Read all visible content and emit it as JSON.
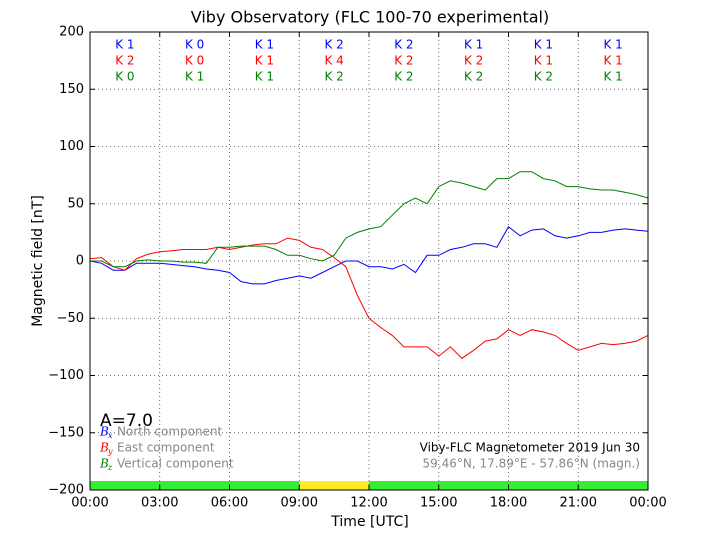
{
  "chart_data": {
    "type": "line",
    "title": "Viby Observatory (FLC 100-70 experimental)",
    "xlabel": "Time [UTC]",
    "ylabel": "Magnetic field [nT]",
    "x": [
      0,
      0.5,
      1,
      1.5,
      2,
      2.5,
      3,
      3.5,
      4,
      4.5,
      5,
      5.5,
      6,
      6.5,
      7,
      7.5,
      8,
      8.5,
      9,
      9.5,
      10,
      10.5,
      11,
      11.5,
      12,
      12.5,
      13,
      13.5,
      14,
      14.5,
      15,
      15.5,
      16,
      16.5,
      17,
      17.5,
      18,
      18.5,
      19,
      19.5,
      20,
      20.5,
      21,
      21.5,
      22,
      22.5,
      23,
      23.5,
      24
    ],
    "xlim": [
      0,
      24
    ],
    "xticks": [
      {
        "value": 0,
        "label": "00:00"
      },
      {
        "value": 3,
        "label": "03:00"
      },
      {
        "value": 6,
        "label": "06:00"
      },
      {
        "value": 9,
        "label": "09:00"
      },
      {
        "value": 12,
        "label": "12:00"
      },
      {
        "value": 15,
        "label": "15:00"
      },
      {
        "value": 18,
        "label": "18:00"
      },
      {
        "value": 21,
        "label": "21:00"
      },
      {
        "value": 24,
        "label": "00:00"
      }
    ],
    "ylim": [
      -200,
      200
    ],
    "yticks": [
      {
        "value": -200,
        "label": "−200"
      },
      {
        "value": -150,
        "label": "−150"
      },
      {
        "value": -100,
        "label": "−100"
      },
      {
        "value": -50,
        "label": "−50"
      },
      0,
      50,
      100,
      150,
      200
    ],
    "grid": true,
    "series": [
      {
        "name": "North component",
        "symbol": "B",
        "subscript": "x",
        "color": "#0000ff",
        "k_labels": [
          "K 1",
          "K 0",
          "K 1",
          "K 2",
          "K 2",
          "K 1",
          "K 1",
          "K 1"
        ],
        "values": [
          0,
          -2,
          -8,
          -8,
          -2,
          -2,
          -2,
          -3,
          -4,
          -5,
          -7,
          -8,
          -10,
          -18,
          -20,
          -20,
          -17,
          -15,
          -13,
          -15,
          -10,
          -5,
          0,
          0,
          -5,
          -5,
          -7,
          -3,
          -10,
          5,
          5,
          10,
          12,
          15,
          15,
          12,
          30,
          22,
          27,
          28,
          22,
          20,
          22,
          25,
          25,
          27,
          28,
          27,
          26
        ]
      },
      {
        "name": "East component",
        "symbol": "B",
        "subscript": "y",
        "color": "#ff0000",
        "k_labels": [
          "K 2",
          "K 0",
          "K 1",
          "K 4",
          "K 2",
          "K 2",
          "K 1",
          "K 1"
        ],
        "values": [
          2,
          3,
          -5,
          -8,
          2,
          6,
          8,
          9,
          10,
          10,
          10,
          12,
          10,
          12,
          14,
          15,
          15,
          20,
          18,
          12,
          10,
          3,
          -5,
          -30,
          -50,
          -58,
          -65,
          -75,
          -75,
          -75,
          -83,
          -75,
          -85,
          -78,
          -70,
          -68,
          -60,
          -65,
          -60,
          -62,
          -65,
          -72,
          -78,
          -75,
          -72,
          -73,
          -72,
          -70,
          -65
        ]
      },
      {
        "name": "Vertical component",
        "symbol": "B",
        "subscript": "z",
        "color": "#008000",
        "k_labels": [
          "K 0",
          "K 1",
          "K 1",
          "K 2",
          "K 2",
          "K 2",
          "K 2",
          "K 1"
        ],
        "values": [
          0,
          0,
          -5,
          -5,
          0,
          1,
          0,
          0,
          -1,
          -1,
          -2,
          12,
          12,
          13,
          13,
          13,
          10,
          5,
          5,
          2,
          0,
          5,
          20,
          25,
          28,
          30,
          40,
          50,
          55,
          50,
          65,
          70,
          68,
          65,
          62,
          72,
          72,
          78,
          78,
          72,
          70,
          65,
          65,
          63,
          62,
          62,
          60,
          58,
          55
        ]
      }
    ],
    "status_bar": [
      {
        "start": 0,
        "end": 9,
        "color": "#33ee33"
      },
      {
        "start": 9,
        "end": 12,
        "color": "#ffee22"
      },
      {
        "start": 12,
        "end": 24,
        "color": "#33ee33"
      }
    ],
    "activity_index": "A=7.0",
    "station_note": "Viby-FLC Magnetometer 2019 Jun 30",
    "location_note": "59.46°N, 17.89°E - 57.86°N (magn.)"
  }
}
